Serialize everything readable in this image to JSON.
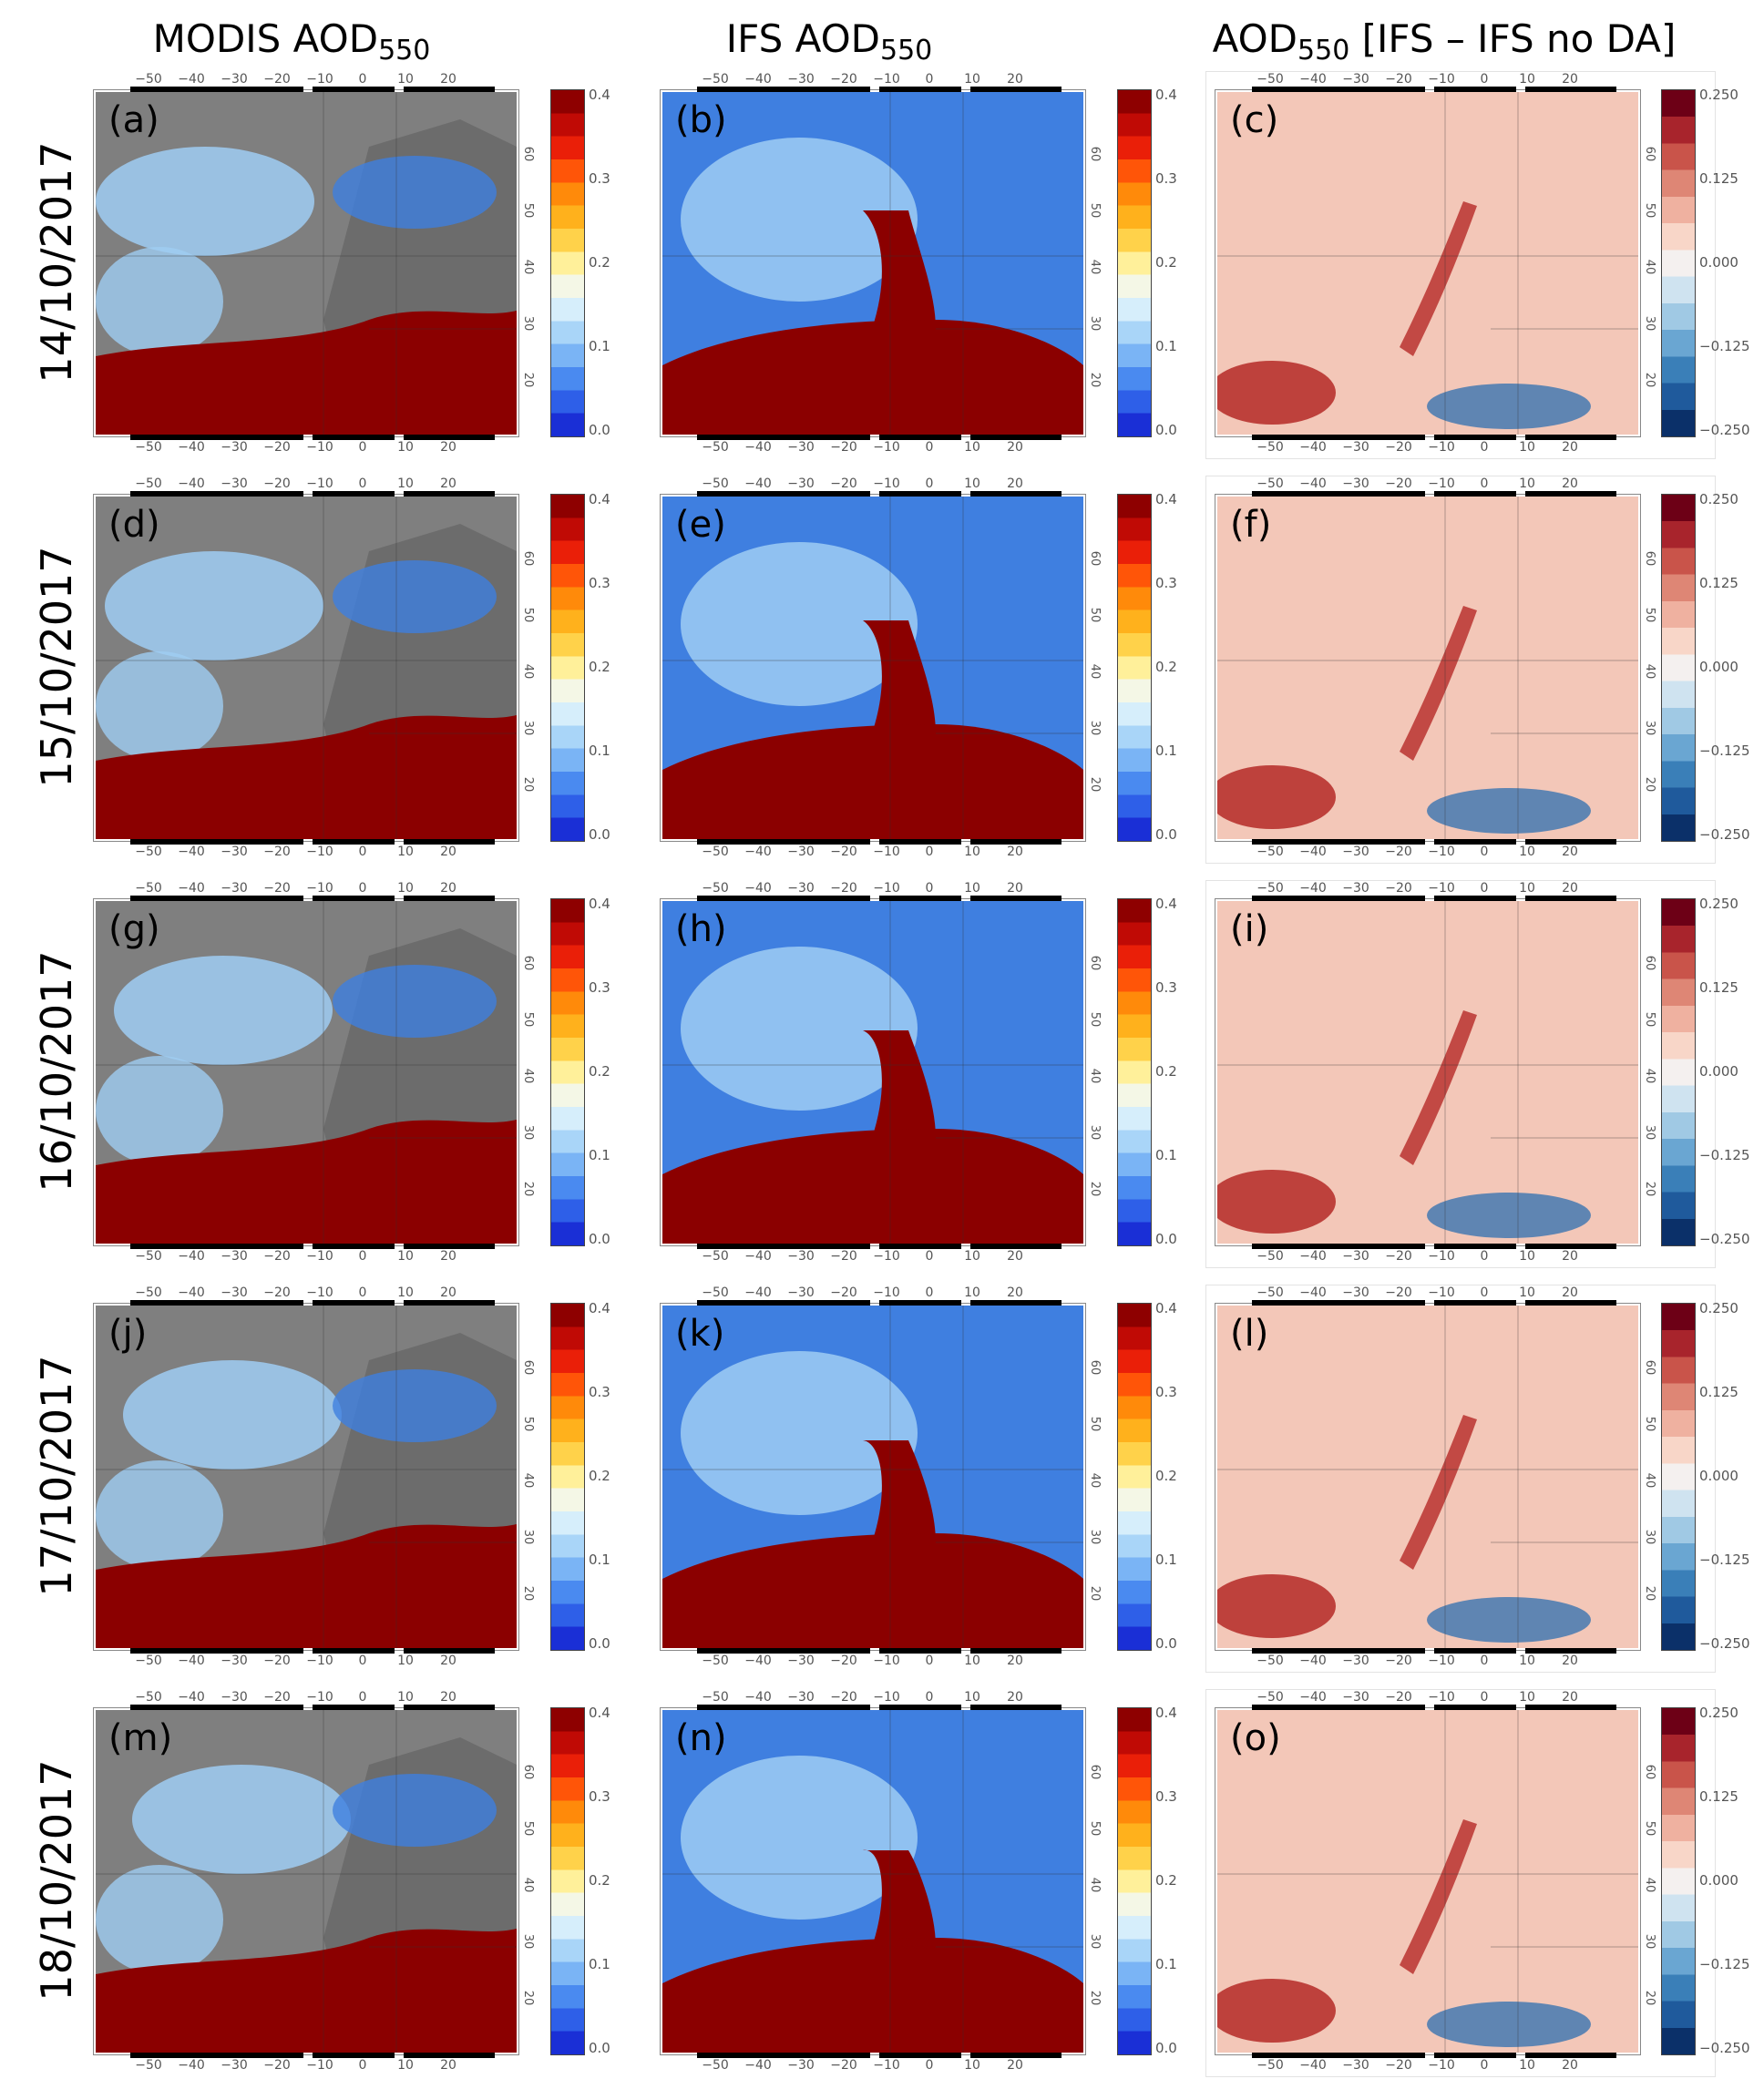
{
  "headers": {
    "col1": {
      "main": "MODIS AOD",
      "sub": "550"
    },
    "col2": {
      "main": "IFS AOD",
      "sub": "550"
    },
    "col3": {
      "main": "AOD",
      "sub": "550",
      "rest": " [IFS – IFS no DA]"
    }
  },
  "rows": [
    {
      "date": "14/10/2017",
      "panels": [
        "(a)",
        "(b)",
        "(c)"
      ]
    },
    {
      "date": "15/10/2017",
      "panels": [
        "(d)",
        "(e)",
        "(f)"
      ]
    },
    {
      "date": "16/10/2017",
      "panels": [
        "(g)",
        "(h)",
        "(i)"
      ]
    },
    {
      "date": "17/10/2017",
      "panels": [
        "(j)",
        "(k)",
        "(l)"
      ]
    },
    {
      "date": "18/10/2017",
      "panels": [
        "(m)",
        "(n)",
        "(o)"
      ]
    }
  ],
  "lon_ticks": [
    "−50",
    "−40",
    "−30",
    "−20",
    "−10",
    "0",
    "10",
    "20"
  ],
  "lat_ticks": [
    "60",
    "50",
    "40",
    "30",
    "20"
  ],
  "colorbar_aod": {
    "ticks": [
      "0.4",
      "0.3",
      "0.2",
      "0.1",
      "0.0"
    ],
    "range": [
      0.0,
      0.4
    ],
    "colors": [
      "#1a2fd6",
      "#2e5fe8",
      "#4a8af0",
      "#7ab4f5",
      "#a9d5f8",
      "#d6eefb",
      "#f4f7e6",
      "#fff09a",
      "#ffd24a",
      "#ffb11c",
      "#ff8a0a",
      "#ff5508",
      "#ea1f08",
      "#c00a05",
      "#8e0000"
    ]
  },
  "colorbar_diff": {
    "ticks": [
      "0.250",
      "0.125",
      "0.000",
      "−0.125",
      "−0.250"
    ],
    "range": [
      -0.25,
      0.25
    ],
    "colors": [
      "#0b3069",
      "#1f5a9c",
      "#3a7fb8",
      "#6aa6d2",
      "#a0c9e4",
      "#cfe3f0",
      "#f4f0ef",
      "#f8d6c8",
      "#efb1a0",
      "#de8675",
      "#c9544a",
      "#a8242c",
      "#6d0016"
    ]
  },
  "map_colors": {
    "gray": "#7f7f7f",
    "land_gray": "#5a5a5a",
    "dust": "#8b0000",
    "blue": "#3f7fe0",
    "light_blue": "#9fcdf3",
    "diff_pink": "#f3c7b8",
    "diff_red": "#b8322f",
    "diff_blue": "#3a74b0"
  }
}
